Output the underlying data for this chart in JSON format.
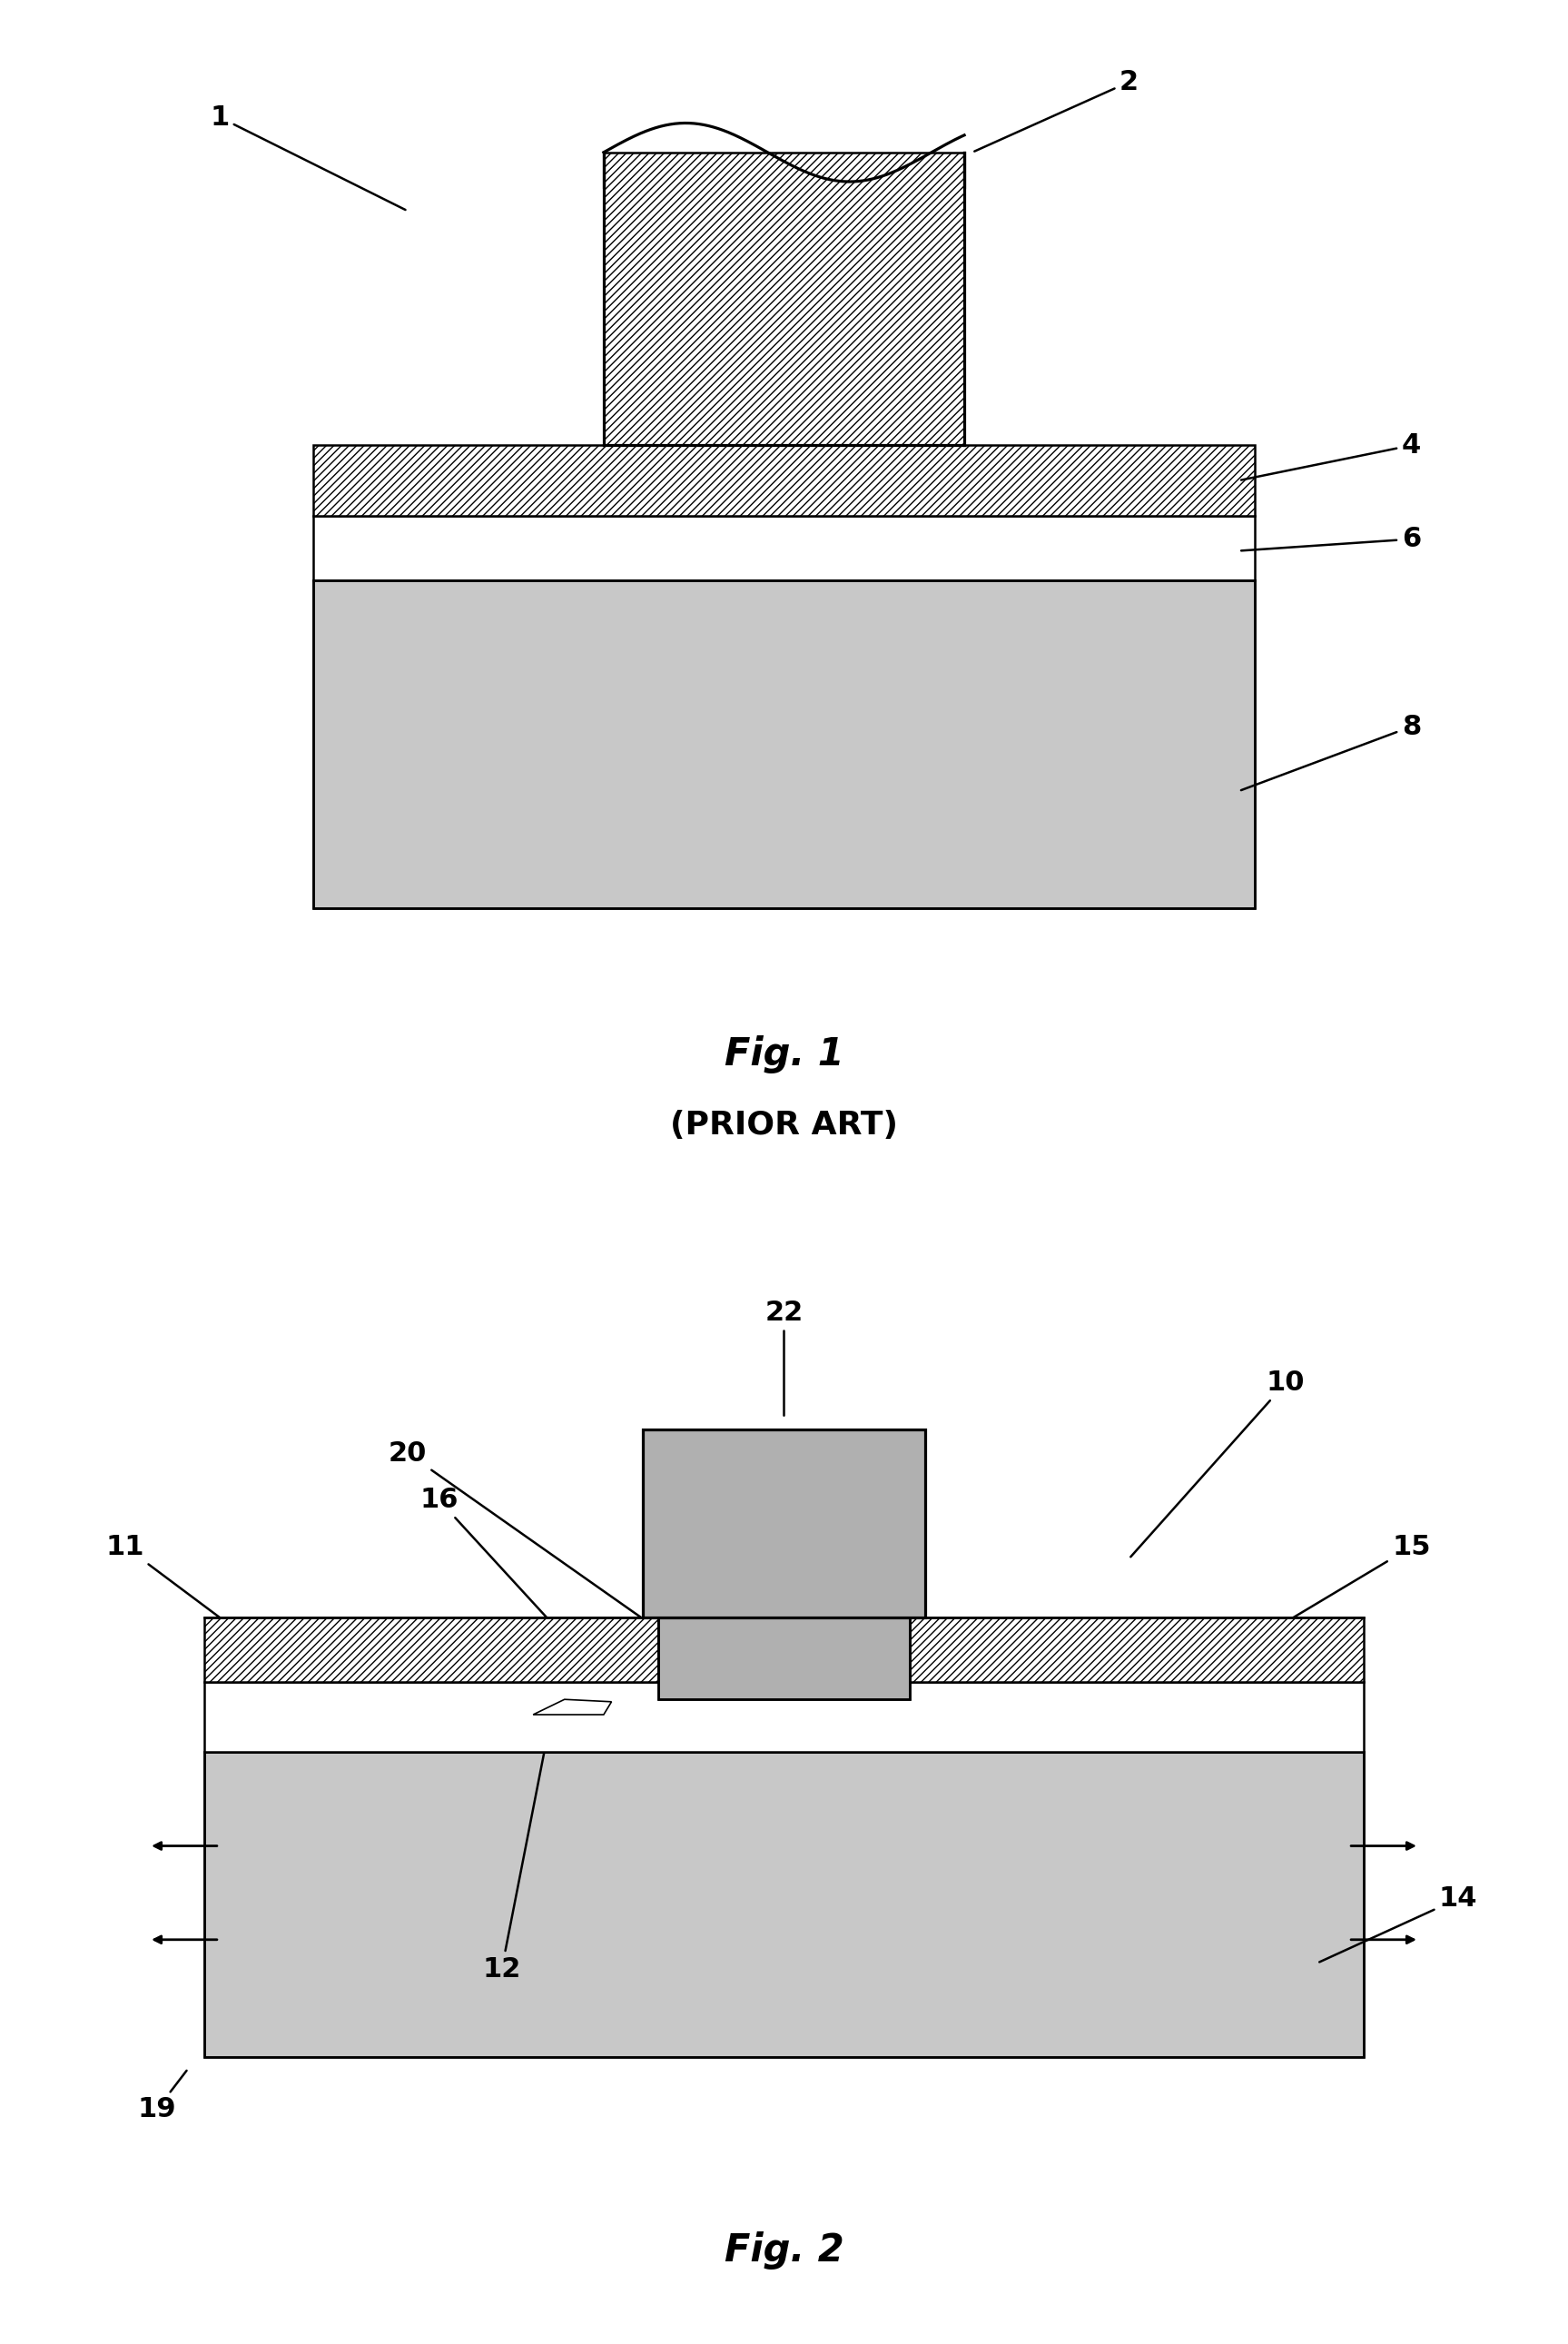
{
  "bg_color": "#ffffff",
  "line_color": "#000000",
  "fig1_title": "Fig. 1",
  "fig1_subtitle": "(PRIOR ART)",
  "fig2_title": "Fig. 2",
  "lw": 1.8,
  "fs_label": 22,
  "fs_title": 28
}
